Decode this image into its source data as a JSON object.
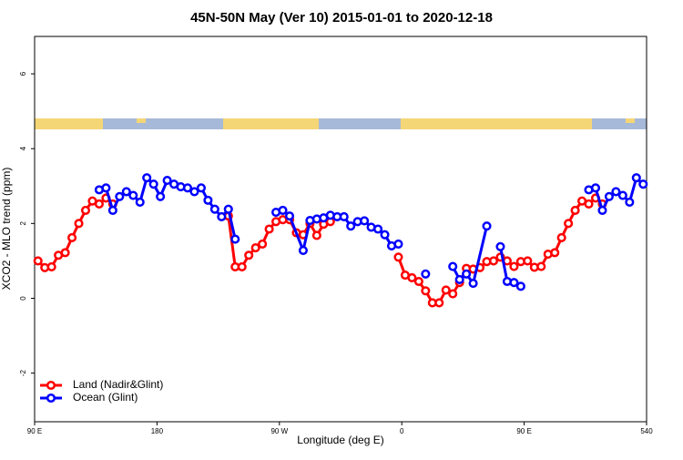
{
  "chart_data": {
    "type": "line",
    "title": "45N-50N May (Ver 10)   2015-01-01 to 2020-12-18",
    "xlabel": "Longitude (deg E)",
    "ylabel": "XCO2 - MLO trend (ppm)",
    "xlim": [
      90,
      540
    ],
    "ylim": [
      -3.3,
      7
    ],
    "xticks": [
      {
        "value": 90,
        "label": "90 E"
      },
      180,
      {
        "value": 270,
        "label": "90 W"
      },
      {
        "value": 360,
        "label": "0"
      },
      {
        "value": 450,
        "label": "90 E"
      },
      540
    ],
    "yticks": [
      -2,
      0,
      2,
      4,
      6
    ],
    "legend": "bottomleft",
    "series": [
      {
        "name": "Land (Nadir&Glint)",
        "color": "#ff0000",
        "x": [
          92.5,
          97.5,
          102.5,
          107.5,
          112.5,
          117.5,
          122.5,
          127.5,
          132.5,
          137.5,
          142.5,
          147.5,
          152.5,
          232.5,
          237.5,
          242.5,
          247.5,
          252.5,
          257.5,
          262.5,
          267.5,
          272.5,
          277.5,
          282.5,
          287.5,
          292.5,
          297.5,
          302.5,
          307.5,
          312.5,
          357.5,
          362.5,
          367.5,
          372.5,
          377.5,
          382.5,
          387.5,
          392.5,
          397.5,
          402.5,
          407.5,
          412.5,
          417.5,
          422.5,
          427.5,
          432.5,
          437.5,
          442.5,
          447.5,
          452.5,
          457.5,
          462.5,
          467.5,
          472.5,
          477.5,
          482.5,
          487.5,
          492.5,
          497.5,
          502.5,
          507.5
        ],
        "values": [
          1.0,
          0.82,
          0.84,
          1.15,
          1.22,
          1.62,
          2.0,
          2.35,
          2.6,
          2.52,
          2.68,
          2.52,
          null,
          2.2,
          0.84,
          0.84,
          1.15,
          1.35,
          1.45,
          1.85,
          2.05,
          2.1,
          2.1,
          1.75,
          1.7,
          2.0,
          1.68,
          1.98,
          2.05,
          null,
          1.1,
          0.62,
          0.55,
          0.45,
          0.2,
          -0.12,
          -0.12,
          0.22,
          0.12,
          0.42,
          0.8,
          0.78,
          0.82,
          0.98,
          1.0,
          1.1,
          1.0,
          0.85,
          0.98,
          1.0,
          0.83,
          0.85,
          1.18,
          1.22,
          1.62,
          2.0,
          2.35,
          2.6,
          2.52,
          2.68,
          2.52
        ]
      },
      {
        "name": "Ocean (Glint)",
        "color": "#0000ff",
        "x": [
          137.5,
          142.5,
          147.5,
          152.5,
          157.5,
          162.5,
          167.5,
          172.5,
          177.5,
          182.5,
          187.5,
          192.5,
          197.5,
          202.5,
          207.5,
          212.5,
          217.5,
          222.5,
          227.5,
          232.5,
          237.5,
          242.5,
          267.5,
          272.5,
          277.5,
          287.5,
          292.5,
          297.5,
          302.5,
          307.5,
          312.5,
          317.5,
          322.5,
          327.5,
          332.5,
          337.5,
          342.5,
          347.5,
          352.5,
          357.5,
          372.5,
          377.5,
          392.5,
          397.5,
          402.5,
          407.5,
          412.5,
          422.5,
          427.5,
          432.5,
          437.5,
          442.5,
          447.5,
          452.5,
          497.5,
          502.5,
          507.5,
          512.5,
          517.5,
          522.5,
          527.5,
          532.5,
          537.5
        ],
        "values": [
          2.9,
          2.95,
          2.35,
          2.72,
          2.85,
          2.75,
          2.57,
          3.22,
          3.05,
          2.72,
          3.15,
          3.05,
          2.98,
          2.95,
          2.85,
          2.95,
          2.62,
          2.38,
          2.18,
          2.38,
          1.58,
          null,
          2.3,
          2.35,
          2.2,
          1.28,
          2.08,
          2.12,
          2.15,
          2.22,
          2.18,
          2.18,
          1.93,
          2.05,
          2.07,
          1.9,
          1.85,
          1.7,
          1.4,
          1.45,
          null,
          0.65,
          null,
          0.85,
          0.5,
          0.65,
          0.4,
          1.93,
          null,
          1.38,
          0.45,
          0.42,
          0.32,
          null,
          2.9,
          2.95,
          2.35,
          2.72,
          2.85,
          2.75,
          2.57,
          3.22,
          3.05
        ]
      }
    ]
  }
}
